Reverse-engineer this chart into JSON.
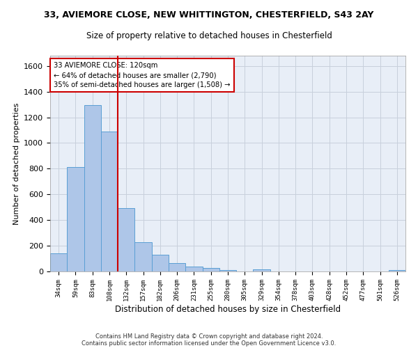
{
  "title_line1": "33, AVIEMORE CLOSE, NEW WHITTINGTON, CHESTERFIELD, S43 2AY",
  "title_line2": "Size of property relative to detached houses in Chesterfield",
  "xlabel": "Distribution of detached houses by size in Chesterfield",
  "ylabel": "Number of detached properties",
  "categories": [
    "34sqm",
    "59sqm",
    "83sqm",
    "108sqm",
    "132sqm",
    "157sqm",
    "182sqm",
    "206sqm",
    "231sqm",
    "255sqm",
    "280sqm",
    "305sqm",
    "329sqm",
    "354sqm",
    "378sqm",
    "403sqm",
    "428sqm",
    "452sqm",
    "477sqm",
    "501sqm",
    "526sqm"
  ],
  "values": [
    140,
    815,
    1295,
    1090,
    495,
    230,
    130,
    65,
    37,
    25,
    13,
    0,
    15,
    0,
    0,
    0,
    0,
    0,
    0,
    0,
    12
  ],
  "bar_color": "#aec6e8",
  "bar_edgecolor": "#5a9fd4",
  "vline_x": 3.5,
  "vline_color": "#cc0000",
  "annotation_line1": "33 AVIEMORE CLOSE: 120sqm",
  "annotation_line2": "← 64% of detached houses are smaller (2,790)",
  "annotation_line3": "35% of semi-detached houses are larger (1,508) →",
  "annotation_box_color": "#cc0000",
  "ylim": [
    0,
    1680
  ],
  "yticks": [
    0,
    200,
    400,
    600,
    800,
    1000,
    1200,
    1400,
    1600
  ],
  "grid_color": "#c8d0dc",
  "bg_color": "#e8eef7",
  "footer_line1": "Contains HM Land Registry data © Crown copyright and database right 2024.",
  "footer_line2": "Contains public sector information licensed under the Open Government Licence v3.0."
}
